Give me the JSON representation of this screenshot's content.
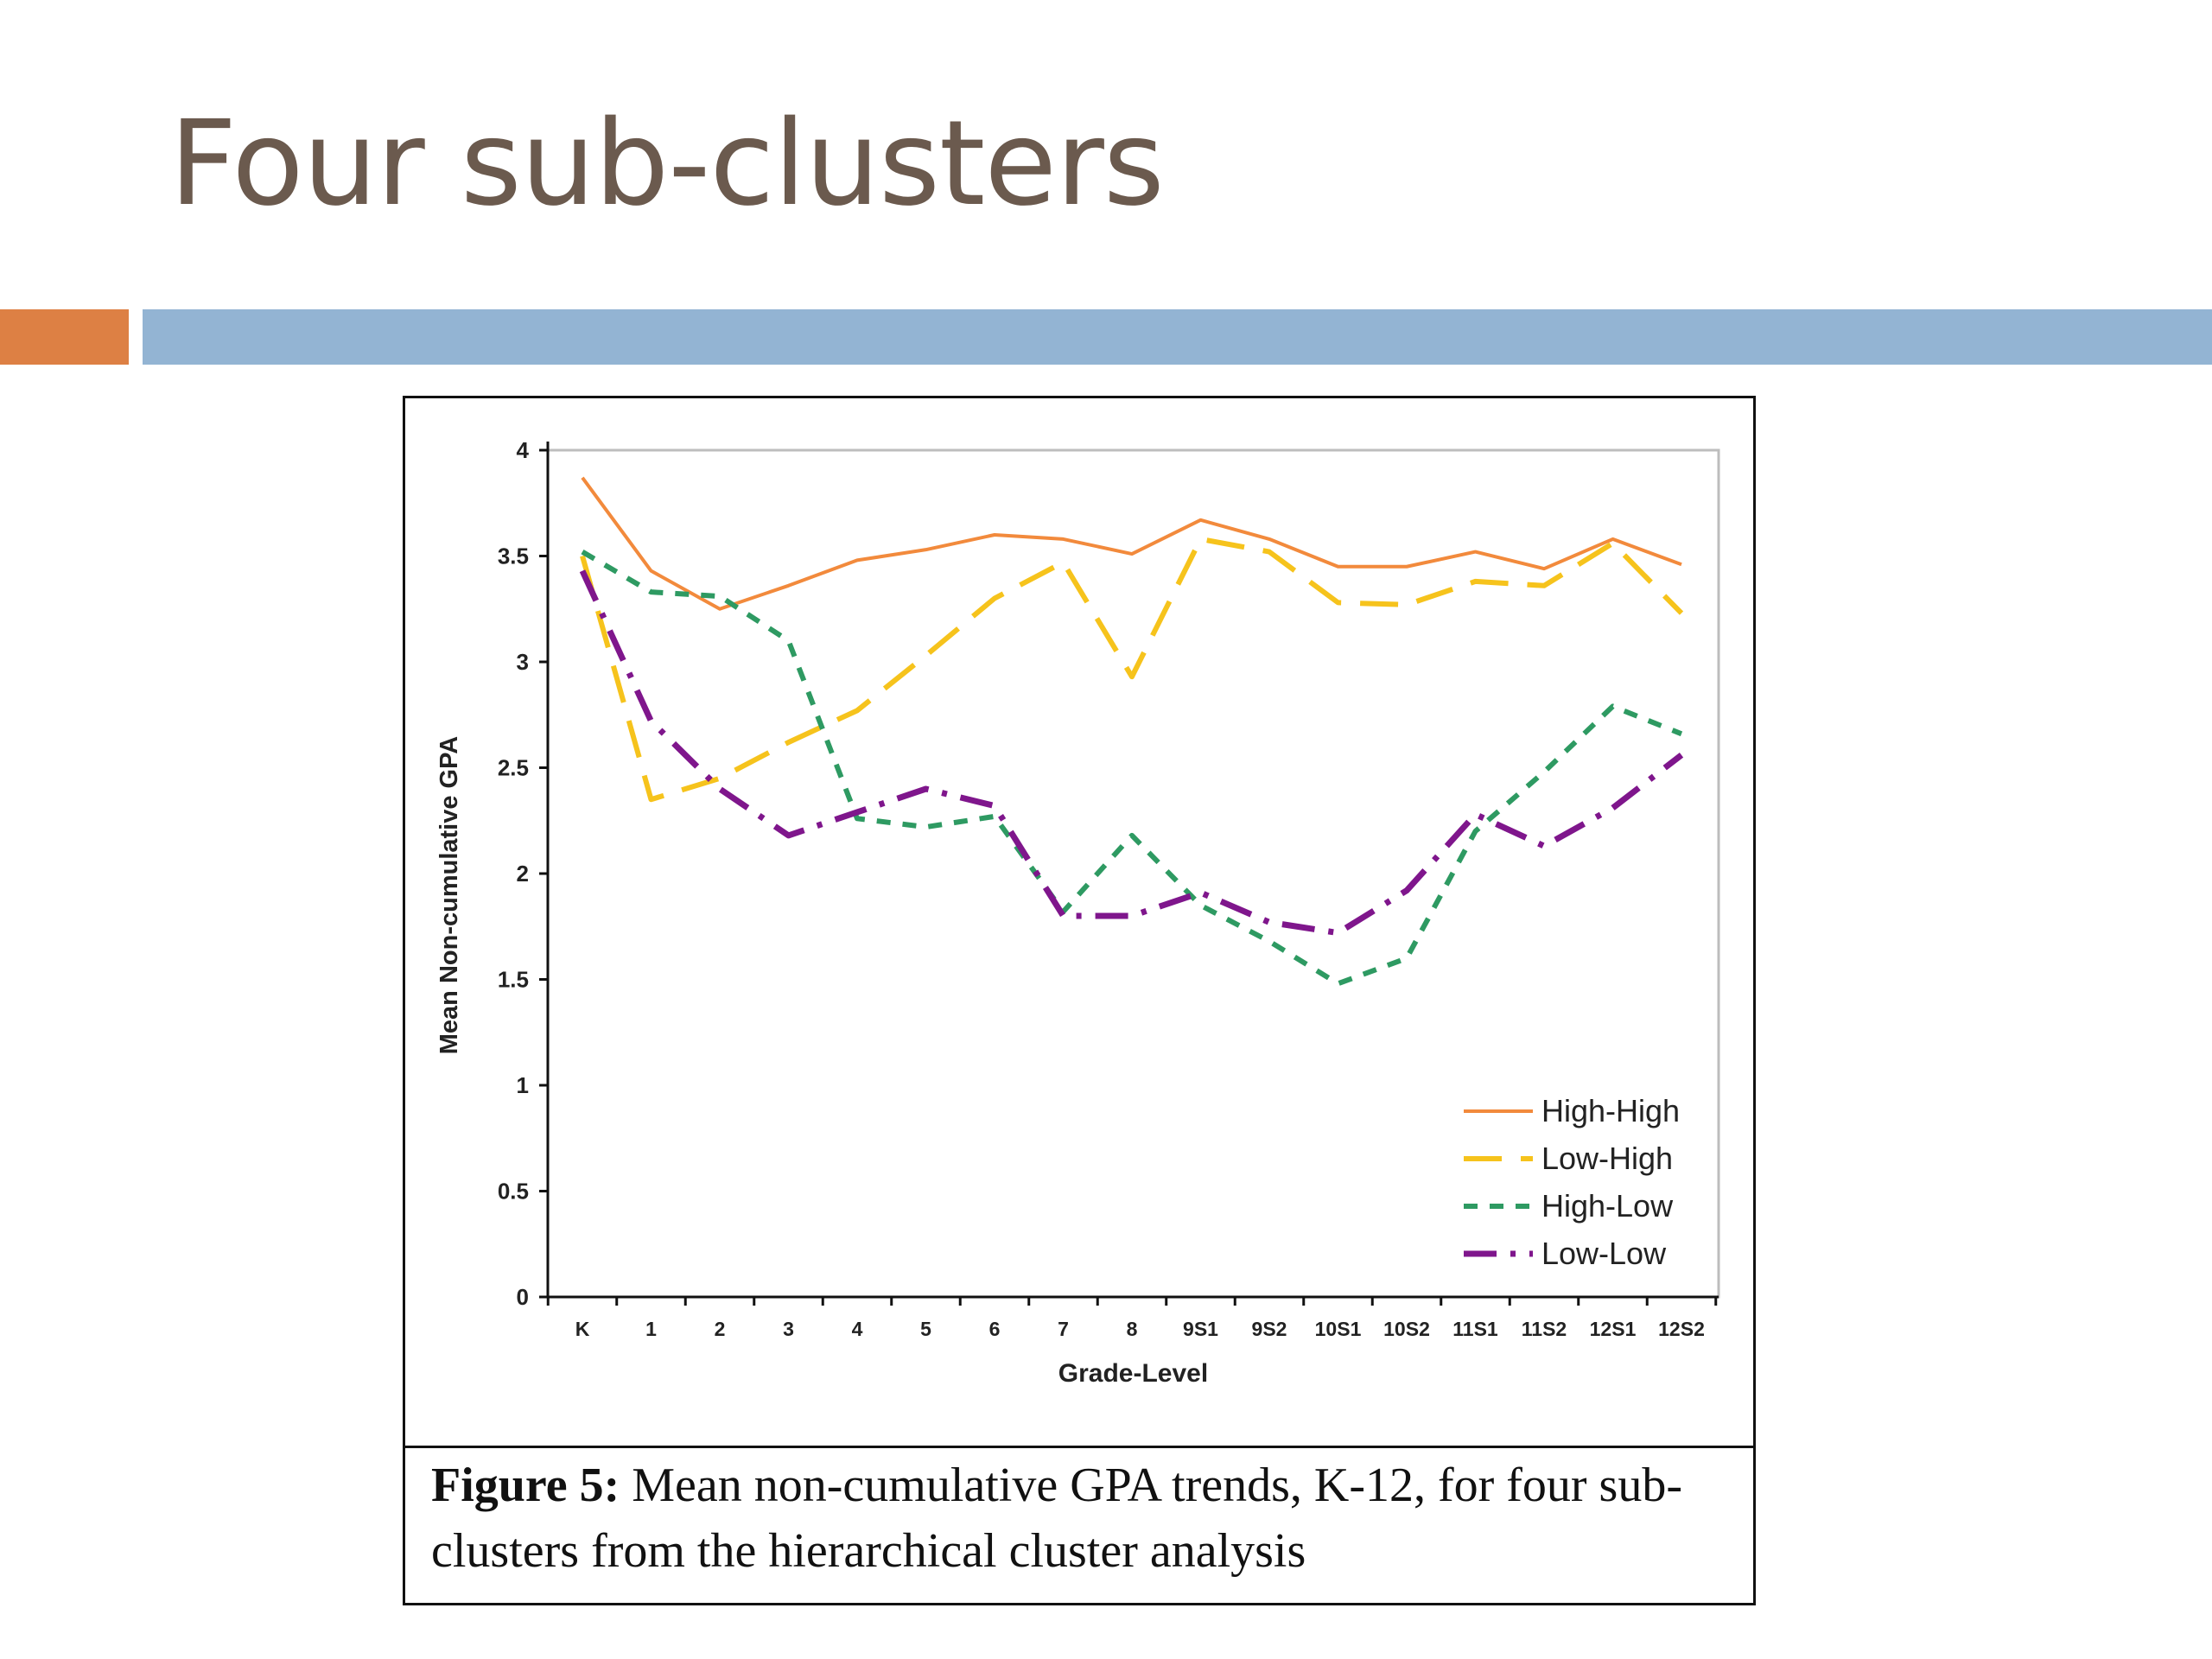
{
  "slide": {
    "title": "Four sub-clusters"
  },
  "colors": {
    "title_text": "#6b5a4e",
    "accent_orange": "#dd8044",
    "accent_blue": "#93b4d3"
  },
  "figure": {
    "caption_label": "Figure 5:",
    "caption_text": " Mean non-cumulative GPA trends, K-12, for four sub-clusters from the hierarchical cluster analysis"
  },
  "chart_data": {
    "type": "line",
    "xlabel": "Grade-Level",
    "ylabel": "Mean Non-cumulative GPA",
    "ylim": [
      0,
      4
    ],
    "yticks": [
      0,
      0.5,
      1,
      1.5,
      2,
      2.5,
      3,
      3.5,
      4
    ],
    "grid": false,
    "legend_position": "bottom-right",
    "categories": [
      "K",
      "1",
      "2",
      "3",
      "4",
      "5",
      "6",
      "7",
      "8",
      "9S1",
      "9S2",
      "10S1",
      "10S2",
      "11S1",
      "11S2",
      "12S1",
      "12S2"
    ],
    "series": [
      {
        "name": "High-High",
        "color": "#f28a3c",
        "dash": "solid",
        "values": [
          3.87,
          3.43,
          3.25,
          3.36,
          3.48,
          3.53,
          3.6,
          3.58,
          3.51,
          3.67,
          3.58,
          3.45,
          3.45,
          3.52,
          3.44,
          3.58,
          3.46
        ]
      },
      {
        "name": "Low-High",
        "color": "#f6c31c",
        "dash": "long-dash",
        "values": [
          3.5,
          2.35,
          2.45,
          2.62,
          2.77,
          3.03,
          3.3,
          3.47,
          2.93,
          3.58,
          3.52,
          3.28,
          3.27,
          3.38,
          3.36,
          3.56,
          3.23
        ]
      },
      {
        "name": "High-Low",
        "color": "#2e9a62",
        "dash": "short-dash",
        "values": [
          3.52,
          3.33,
          3.31,
          3.1,
          2.26,
          2.22,
          2.27,
          1.82,
          2.18,
          1.85,
          1.68,
          1.48,
          1.6,
          2.2,
          2.48,
          2.79,
          2.66
        ]
      },
      {
        "name": "Low-Low",
        "color": "#7f168c",
        "dash": "dash-dot",
        "values": [
          3.43,
          2.72,
          2.4,
          2.18,
          2.29,
          2.4,
          2.32,
          1.8,
          1.8,
          1.91,
          1.77,
          1.72,
          1.92,
          2.28,
          2.13,
          2.31,
          2.56
        ]
      }
    ]
  }
}
